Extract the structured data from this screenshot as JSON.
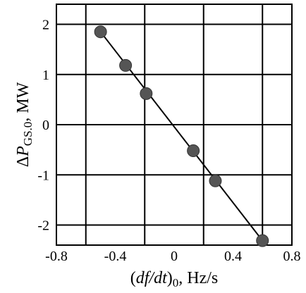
{
  "chart_data": {
    "type": "scatter",
    "title": "",
    "xlabel": {
      "parts": [
        {
          "text": "(",
          "italic": false,
          "sub": false
        },
        {
          "text": "df/dt",
          "italic": true,
          "sub": false
        },
        {
          "text": ")",
          "italic": false,
          "sub": false
        },
        {
          "text": "0",
          "italic": false,
          "sub": true
        },
        {
          "text": ", Hz/s",
          "italic": false,
          "sub": false
        }
      ]
    },
    "ylabel": {
      "parts": [
        {
          "text": "Δ",
          "italic": false,
          "sub": false
        },
        {
          "text": "P",
          "italic": true,
          "sub": false
        },
        {
          "text": "GS.0",
          "italic": false,
          "sub": true
        },
        {
          "text": ", MW",
          "italic": false,
          "sub": false
        }
      ]
    },
    "xlim": [
      -0.8,
      0.8
    ],
    "ylim": [
      -2.4,
      2.4
    ],
    "xticks": [
      -0.8,
      -0.4,
      0,
      0.4,
      0.8
    ],
    "xtick_labels": [
      "-0.8",
      "-0.4",
      "0",
      "0.4",
      "0.8"
    ],
    "yticks": [
      2,
      1,
      0,
      -1,
      -2
    ],
    "ytick_labels": [
      "2",
      "1",
      "0",
      "-1",
      "-2"
    ],
    "grid": true,
    "grid_x": [
      -0.6,
      -0.2,
      0.2,
      0.6
    ],
    "grid_y": [
      2,
      1,
      0,
      -1,
      -2
    ],
    "series": [
      {
        "marker_color": "#555555",
        "points": [
          {
            "x": -0.5,
            "y": 1.85
          },
          {
            "x": -0.33,
            "y": 1.18
          },
          {
            "x": -0.19,
            "y": 0.62
          },
          {
            "x": 0.13,
            "y": -0.52
          },
          {
            "x": 0.28,
            "y": -1.12
          },
          {
            "x": 0.6,
            "y": -2.31
          }
        ]
      }
    ],
    "fit_line": {
      "x": [
        -0.5,
        0.6
      ],
      "y": [
        1.85,
        -2.31
      ],
      "color": "#000000"
    }
  }
}
